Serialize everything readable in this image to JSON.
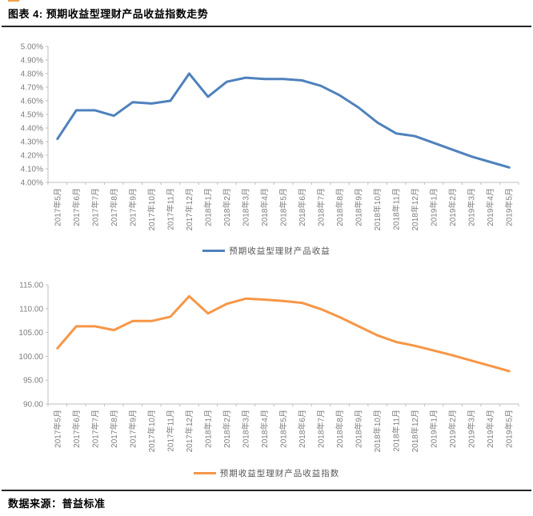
{
  "header": {
    "title": "图表 4: 预期收益型理财产品收益指数走势"
  },
  "footer": {
    "source": "数据来源：普益标准"
  },
  "colors": {
    "blue_line": "#4F81BD",
    "orange_line": "#F79646",
    "accent_orange": "#F0A04B",
    "rule_dark": "#262626",
    "axis_line": "#BFBFBF",
    "axis_text": "#7F7F7F",
    "legend_text": "#595959"
  },
  "chart_data": [
    {
      "type": "line",
      "title": "",
      "xlabel": "",
      "ylabel": "",
      "grid": false,
      "legend_position": "bottom",
      "ylim": [
        4.0,
        5.0
      ],
      "ytick_step": 0.1,
      "ytick_format": "percent",
      "categories": [
        "2017年5月",
        "2017年6月",
        "2017年7月",
        "2017年8月",
        "2017年9月",
        "2017年10月",
        "2017年11月",
        "2017年12月",
        "2018年1月",
        "2018年2月",
        "2018年3月",
        "2018年4月",
        "2018年5月",
        "2018年6月",
        "2018年7月",
        "2018年8月",
        "2018年9月",
        "2018年10月",
        "2018年11月",
        "2018年12月",
        "2019年1月",
        "2019年2月",
        "2019年3月",
        "2019年4月",
        "2019年5月"
      ],
      "series": [
        {
          "name": "预期收益型理财产品收益",
          "color": "#4F81BD",
          "values": [
            4.32,
            4.53,
            4.53,
            4.49,
            4.59,
            4.58,
            4.6,
            4.8,
            4.63,
            4.74,
            4.77,
            4.76,
            4.76,
            4.75,
            4.71,
            4.64,
            4.55,
            4.44,
            4.36,
            4.34,
            4.29,
            4.24,
            4.19,
            4.15,
            4.11
          ]
        }
      ]
    },
    {
      "type": "line",
      "title": "",
      "xlabel": "",
      "ylabel": "",
      "grid": false,
      "legend_position": "bottom",
      "ylim": [
        90.0,
        115.0
      ],
      "ytick_step": 5.0,
      "ytick_format": "fixed2",
      "categories": [
        "2017年5月",
        "2017年6月",
        "2017年7月",
        "2017年8月",
        "2017年9月",
        "2017年10月",
        "2017年11月",
        "2017年12月",
        "2018年1月",
        "2018年2月",
        "2018年3月",
        "2018年4月",
        "2018年5月",
        "2018年6月",
        "2018年7月",
        "2018年8月",
        "2018年9月",
        "2018年10月",
        "2018年11月",
        "2018年12月",
        "2019年1月",
        "2019年2月",
        "2019年3月",
        "2019年4月",
        "2019年5月"
      ],
      "series": [
        {
          "name": "预期收益型理财产品收益指数",
          "color": "#F79646",
          "values": [
            101.7,
            106.3,
            106.3,
            105.5,
            107.4,
            107.4,
            108.3,
            112.6,
            109.0,
            111.0,
            112.1,
            111.9,
            111.6,
            111.2,
            109.9,
            108.2,
            106.3,
            104.4,
            103.0,
            102.2,
            101.2,
            100.2,
            99.1,
            98.0,
            96.9
          ]
        }
      ]
    }
  ]
}
